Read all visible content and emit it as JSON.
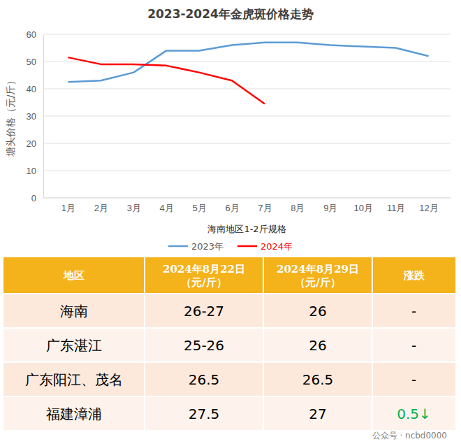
{
  "chart_data": {
    "type": "line",
    "title": "2023-2024年金虎斑价格走势",
    "y_label": "塘头价格（元/斤）",
    "x_label": "海南地区1-2斤规格",
    "categories": [
      "1月",
      "2月",
      "3月",
      "4月",
      "5月",
      "6月",
      "7月",
      "8月",
      "9月",
      "10月",
      "11月",
      "12月"
    ],
    "series": [
      {
        "name": "2023年",
        "color": "#5b9bd5",
        "values": [
          42.5,
          43,
          46,
          54,
          54,
          56,
          57,
          57,
          56,
          55.5,
          55,
          52
        ]
      },
      {
        "name": "2024年",
        "color": "#ff0000",
        "values": [
          51.5,
          49,
          49,
          48.5,
          46,
          43,
          34.5,
          null,
          null,
          null,
          null,
          null
        ]
      }
    ],
    "ylim": [
      0,
      60
    ],
    "yticks": [
      0,
      10,
      20,
      30,
      40,
      50,
      60
    ],
    "grid": true,
    "legend": "bottom"
  },
  "table": {
    "header": [
      "地区",
      "2024年8月22日（元/斤）",
      "2024年8月29日（元/斤）",
      "涨跌"
    ],
    "rows": [
      [
        "海南",
        "26-27",
        "26",
        "-"
      ],
      [
        "广东湛江",
        "25-26",
        "26",
        "-"
      ],
      [
        "广东阳江、茂名",
        "26.5",
        "26.5",
        "-"
      ],
      [
        "福建漳浦",
        "27.5",
        "27",
        "0.5↓"
      ]
    ]
  },
  "footer": "公众号 · ncbd0000"
}
